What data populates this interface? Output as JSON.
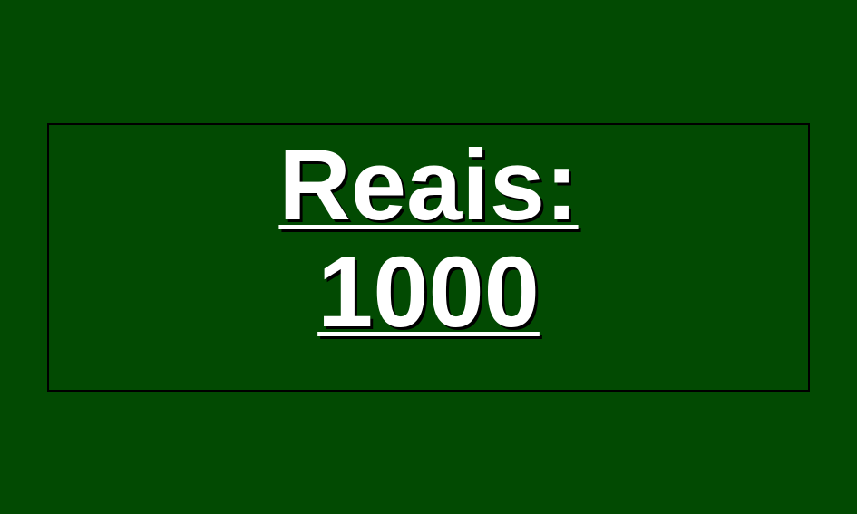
{
  "slide": {
    "label": "Reais:",
    "value": "1000"
  },
  "colors": {
    "background": "#024A02",
    "text": "#FFFFFF",
    "border": "#000000"
  }
}
